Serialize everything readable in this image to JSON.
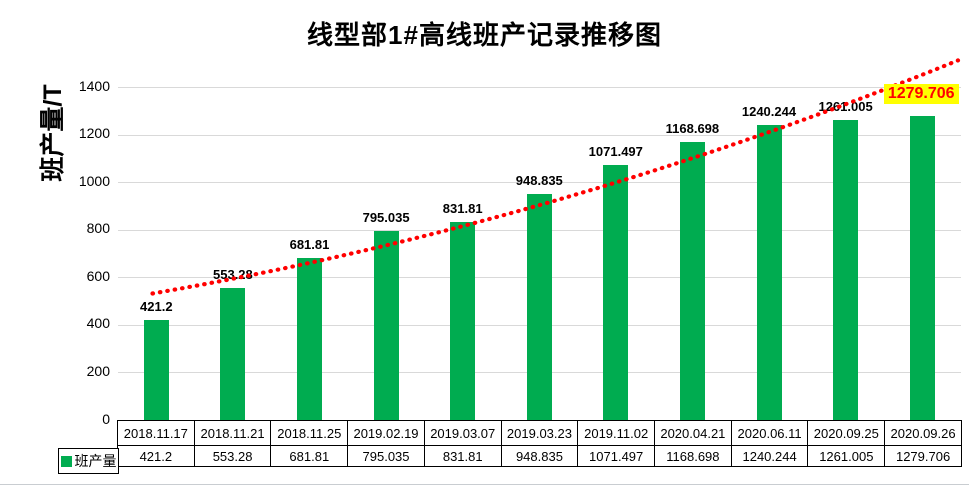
{
  "chart_data": {
    "type": "bar",
    "title": "线型部1#高线班产记录推移图",
    "xlabel": "",
    "ylabel": "班产量/T",
    "ylim": [
      0,
      1400
    ],
    "ytick_step": 200,
    "yticks": [
      0,
      200,
      400,
      600,
      800,
      1000,
      1200,
      1400
    ],
    "grid": "horizontal-only",
    "legend_position": "table-row-left",
    "categories": [
      "2018.11.17",
      "2018.11.21",
      "2018.11.25",
      "2019.02.19",
      "2019.03.07",
      "2019.03.23",
      "2019.11.02",
      "2020.04.21",
      "2020.06.11",
      "2020.09.25",
      "2020.09.26"
    ],
    "series": [
      {
        "name": "班产量",
        "values": [
          421.2,
          553.28,
          681.81,
          795.035,
          831.81,
          948.835,
          1071.497,
          1168.698,
          1240.244,
          1261.005,
          1279.706
        ]
      }
    ],
    "data_labels": [
      "421.2",
      "553.28",
      "681.81",
      "795.035",
      "831.81",
      "948.835",
      "1071.497",
      "1168.698",
      "1240.244",
      "1261.005",
      "1279.706"
    ],
    "highlighted_label": {
      "index": 10,
      "text": "1279.706",
      "text_color": "#FF0000",
      "background": "#FFFF00"
    },
    "trendline": {
      "style": "dotted",
      "color": "#FF0000",
      "start_value": 532,
      "control_value": 823,
      "end_value": 1512
    }
  },
  "colors": {
    "bar": "#00AC50",
    "gridline": "#D9D9D9",
    "trendline": "#FF0000",
    "table_border": "#000000",
    "label_text": "#000000",
    "highlight_bg": "#FFFF00",
    "highlight_text": "#FF0000"
  },
  "data_table": {
    "legend_label": "班产量"
  }
}
